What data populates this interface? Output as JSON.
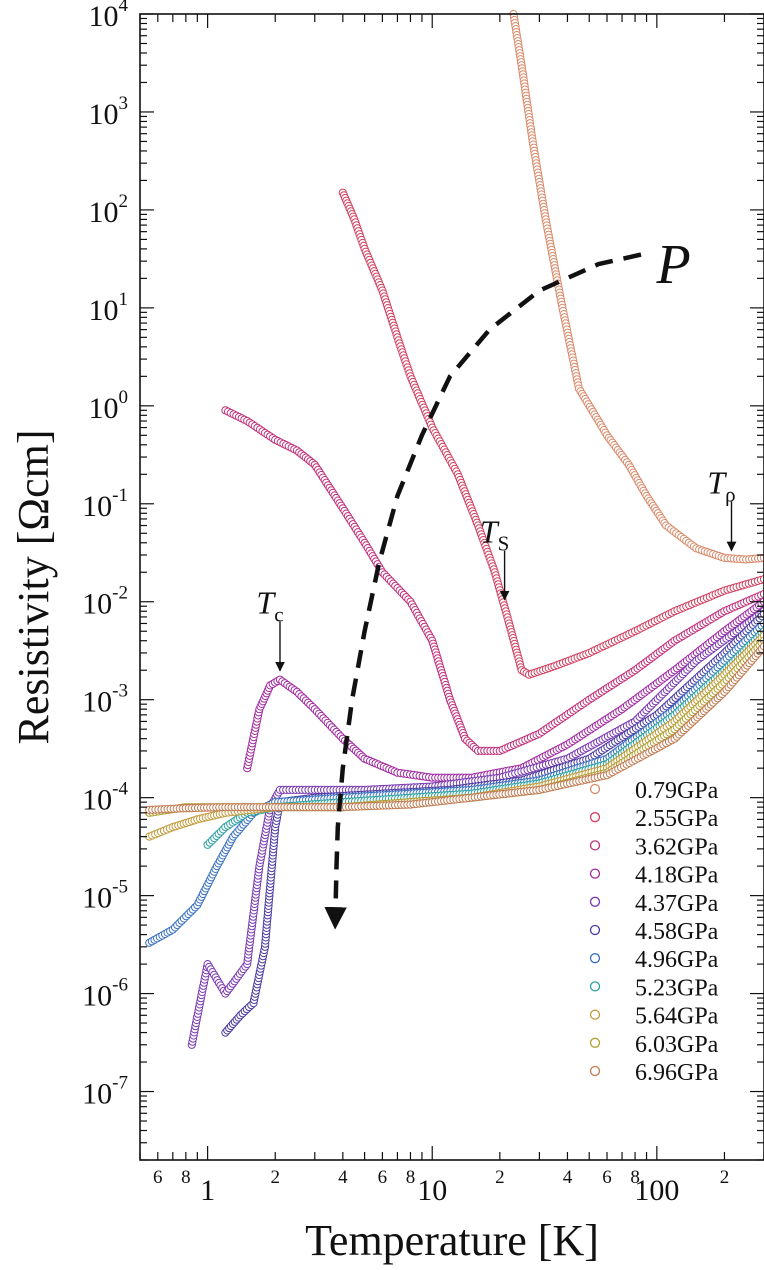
{
  "chart_data": {
    "type": "scatter",
    "xlabel": "Temperature [K]",
    "ylabel": "Resistivity [Ωcm]",
    "x_scale": "log",
    "y_scale": "log",
    "xlim": [
      0.5,
      300
    ],
    "ylim": [
      2e-08,
      10000
    ],
    "x_major_ticks": [
      {
        "value": 1,
        "label": "1"
      },
      {
        "value": 10,
        "label": "10"
      },
      {
        "value": 100,
        "label": "100"
      }
    ],
    "x_minor_labels": [
      {
        "value": 0.6,
        "label": "6"
      },
      {
        "value": 0.8,
        "label": "8"
      },
      {
        "value": 2,
        "label": "2"
      },
      {
        "value": 4,
        "label": "4"
      },
      {
        "value": 6,
        "label": "6"
      },
      {
        "value": 8,
        "label": "8"
      },
      {
        "value": 20,
        "label": "2"
      },
      {
        "value": 40,
        "label": "4"
      },
      {
        "value": 60,
        "label": "6"
      },
      {
        "value": 80,
        "label": "8"
      },
      {
        "value": 200,
        "label": "2"
      }
    ],
    "y_major_ticks": [
      {
        "value": 1e-07,
        "base": "10",
        "exp": "-7"
      },
      {
        "value": 1e-06,
        "base": "10",
        "exp": "-6"
      },
      {
        "value": 1e-05,
        "base": "10",
        "exp": "-5"
      },
      {
        "value": 0.0001,
        "base": "10",
        "exp": "-4"
      },
      {
        "value": 0.001,
        "base": "10",
        "exp": "-3"
      },
      {
        "value": 0.01,
        "base": "10",
        "exp": "-2"
      },
      {
        "value": 0.1,
        "base": "10",
        "exp": "-1"
      },
      {
        "value": 1,
        "base": "10",
        "exp": "0"
      },
      {
        "value": 10,
        "base": "10",
        "exp": "1"
      },
      {
        "value": 100,
        "base": "10",
        "exp": "2"
      },
      {
        "value": 1000,
        "base": "10",
        "exp": "3"
      },
      {
        "value": 10000,
        "base": "10",
        "exp": "4"
      }
    ],
    "legend_position": "bottom-right",
    "series": [
      {
        "name": "0.79GPa",
        "color": "#d98a6a",
        "points": [
          [
            23,
            10000
          ],
          [
            25,
            3000
          ],
          [
            28,
            500
          ],
          [
            32,
            80
          ],
          [
            38,
            10
          ],
          [
            45,
            1.5
          ],
          [
            60,
            0.5
          ],
          [
            75,
            0.25
          ],
          [
            90,
            0.12
          ],
          [
            110,
            0.06
          ],
          [
            150,
            0.035
          ],
          [
            200,
            0.028
          ],
          [
            250,
            0.027
          ],
          [
            300,
            0.028
          ]
        ]
      },
      {
        "name": "2.55GPa",
        "color": "#d04060",
        "points": [
          [
            4,
            150
          ],
          [
            4.5,
            80
          ],
          [
            5,
            40
          ],
          [
            6,
            15
          ],
          [
            7,
            5
          ],
          [
            8,
            2
          ],
          [
            10,
            0.6
          ],
          [
            13,
            0.2
          ],
          [
            16,
            0.06
          ],
          [
            19,
            0.02
          ],
          [
            22,
            0.006
          ],
          [
            25,
            0.002
          ],
          [
            27,
            0.0018
          ],
          [
            35,
            0.0022
          ],
          [
            50,
            0.003
          ],
          [
            80,
            0.005
          ],
          [
            120,
            0.008
          ],
          [
            200,
            0.013
          ],
          [
            300,
            0.017
          ]
        ]
      },
      {
        "name": "3.62GPa",
        "color": "#c0307a",
        "points": [
          [
            1.2,
            0.9
          ],
          [
            1.5,
            0.7
          ],
          [
            2,
            0.45
          ],
          [
            2.5,
            0.35
          ],
          [
            3,
            0.25
          ],
          [
            4,
            0.09
          ],
          [
            5,
            0.04
          ],
          [
            6,
            0.02
          ],
          [
            8,
            0.01
          ],
          [
            10,
            0.004
          ],
          [
            12,
            0.001
          ],
          [
            14,
            0.0004
          ],
          [
            16,
            0.0003
          ],
          [
            20,
            0.0003
          ],
          [
            30,
            0.00045
          ],
          [
            50,
            0.001
          ],
          [
            80,
            0.002
          ],
          [
            120,
            0.004
          ],
          [
            200,
            0.008
          ],
          [
            300,
            0.012
          ]
        ]
      },
      {
        "name": "4.18GPa",
        "color": "#a02aa0",
        "points": [
          [
            1.5,
            0.0002
          ],
          [
            1.7,
            0.0008
          ],
          [
            1.9,
            0.0014
          ],
          [
            2.1,
            0.0016
          ],
          [
            2.5,
            0.0012
          ],
          [
            3,
            0.0008
          ],
          [
            4,
            0.0004
          ],
          [
            5,
            0.00025
          ],
          [
            7,
            0.00018
          ],
          [
            10,
            0.00016
          ],
          [
            15,
            0.00016
          ],
          [
            25,
            0.0002
          ],
          [
            40,
            0.00035
          ],
          [
            70,
            0.0008
          ],
          [
            120,
            0.002
          ],
          [
            200,
            0.005
          ],
          [
            300,
            0.01
          ]
        ]
      },
      {
        "name": "4.37GPa",
        "color": "#7a3ab0",
        "points": [
          [
            0.85,
            3e-07
          ],
          [
            1,
            2e-06
          ],
          [
            1.2,
            1e-06
          ],
          [
            1.5,
            2e-06
          ],
          [
            1.7,
            2e-05
          ],
          [
            1.9,
            8e-05
          ],
          [
            2.1,
            0.00012
          ],
          [
            3,
            0.00012
          ],
          [
            5,
            0.00012
          ],
          [
            10,
            0.00013
          ],
          [
            20,
            0.00016
          ],
          [
            40,
            0.00025
          ],
          [
            80,
            0.0006
          ],
          [
            150,
            0.0025
          ],
          [
            300,
            0.008
          ]
        ]
      },
      {
        "name": "4.58GPa",
        "color": "#4a3aa0",
        "points": [
          [
            1.2,
            4e-07
          ],
          [
            1.4,
            6e-07
          ],
          [
            1.6,
            8e-07
          ],
          [
            1.8,
            3e-06
          ],
          [
            2,
            5e-05
          ],
          [
            2.1,
            9e-05
          ],
          [
            3,
            0.0001
          ],
          [
            6,
            0.00011
          ],
          [
            12,
            0.00012
          ],
          [
            25,
            0.00015
          ],
          [
            50,
            0.00025
          ],
          [
            100,
            0.0007
          ],
          [
            200,
            0.003
          ],
          [
            300,
            0.0075
          ]
        ]
      },
      {
        "name": "4.96GPa",
        "color": "#3a70c0",
        "points": [
          [
            0.55,
            3.3e-06
          ],
          [
            0.7,
            4.5e-06
          ],
          [
            0.9,
            8e-06
          ],
          [
            1.1,
            2e-05
          ],
          [
            1.3,
            4e-05
          ],
          [
            1.6,
            7e-05
          ],
          [
            2,
            9e-05
          ],
          [
            4,
            0.0001
          ],
          [
            8,
            0.00011
          ],
          [
            15,
            0.00012
          ],
          [
            30,
            0.00015
          ],
          [
            60,
            0.00025
          ],
          [
            120,
            0.0008
          ],
          [
            200,
            0.0025
          ],
          [
            300,
            0.006
          ]
        ]
      },
      {
        "name": "5.23GPa",
        "color": "#2aa0a0",
        "points": [
          [
            1,
            3.3e-05
          ],
          [
            1.2,
            5e-05
          ],
          [
            1.5,
            7e-05
          ],
          [
            2,
            8e-05
          ],
          [
            4,
            9e-05
          ],
          [
            8,
            0.0001
          ],
          [
            15,
            0.00011
          ],
          [
            30,
            0.00014
          ],
          [
            60,
            0.00022
          ],
          [
            120,
            0.0007
          ],
          [
            200,
            0.002
          ],
          [
            300,
            0.005
          ]
        ]
      },
      {
        "name": "5.64GPa",
        "color": "#c09a3a",
        "points": [
          [
            0.55,
            4e-05
          ],
          [
            0.7,
            5e-05
          ],
          [
            0.9,
            6e-05
          ],
          [
            1.2,
            7e-05
          ],
          [
            2,
            8e-05
          ],
          [
            4,
            8e-05
          ],
          [
            8,
            9e-05
          ],
          [
            15,
            0.0001
          ],
          [
            30,
            0.00013
          ],
          [
            60,
            0.0002
          ],
          [
            120,
            0.0006
          ],
          [
            200,
            0.0018
          ],
          [
            300,
            0.0045
          ]
        ]
      },
      {
        "name": "6.03GPa",
        "color": "#b0a030",
        "points": [
          [
            0.55,
            7e-05
          ],
          [
            0.8,
            8e-05
          ],
          [
            1.2,
            8e-05
          ],
          [
            2,
            8e-05
          ],
          [
            4,
            8e-05
          ],
          [
            8,
            9e-05
          ],
          [
            15,
            0.0001
          ],
          [
            30,
            0.00012
          ],
          [
            60,
            0.00018
          ],
          [
            120,
            0.0005
          ],
          [
            200,
            0.0015
          ],
          [
            300,
            0.004
          ]
        ]
      },
      {
        "name": "6.96GPa",
        "color": "#c07a50",
        "points": [
          [
            0.55,
            7.5e-05
          ],
          [
            0.8,
            7.8e-05
          ],
          [
            1.2,
            8e-05
          ],
          [
            2,
            8e-05
          ],
          [
            4,
            8e-05
          ],
          [
            8,
            8.5e-05
          ],
          [
            15,
            0.0001
          ],
          [
            30,
            0.00012
          ],
          [
            60,
            0.00017
          ],
          [
            120,
            0.0004
          ],
          [
            200,
            0.0012
          ],
          [
            300,
            0.0035
          ]
        ]
      }
    ],
    "annotations": [
      {
        "name": "Tc",
        "main": "T",
        "sub": "c",
        "x": 2.1,
        "y": 0.0016
      },
      {
        "name": "Ts",
        "main": "T",
        "sub": "S",
        "x": 21,
        "y": 0.0085
      },
      {
        "name": "Trho",
        "main": "T",
        "sub": "ρ",
        "x": 215,
        "y": 0.027
      },
      {
        "name": "P",
        "label": "P"
      }
    ],
    "pressure_curve": [
      [
        85,
        35
      ],
      [
        55,
        28
      ],
      [
        30,
        15
      ],
      [
        18,
        6
      ],
      [
        12,
        2
      ],
      [
        9,
        0.5
      ],
      [
        7,
        0.12
      ],
      [
        5.8,
        0.025
      ],
      [
        5,
        0.005
      ],
      [
        4.4,
        0.001
      ],
      [
        4,
        0.0002
      ],
      [
        3.8,
        5e-05
      ],
      [
        3.75,
        2e-05
      ],
      [
        3.7,
        5e-06
      ]
    ]
  }
}
